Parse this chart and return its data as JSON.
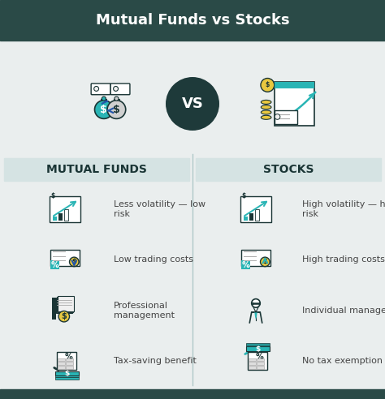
{
  "title": "Mutual Funds vs Stocks",
  "title_bg": "#2a4a47",
  "title_color": "#ffffff",
  "bg_color": "#eaeeee",
  "left_header": "MUTUAL FUNDS",
  "right_header": "STOCKS",
  "header_bg": "#d5e3e3",
  "header_text_color": "#1a3535",
  "accent_color": "#2ab5b5",
  "dark_color": "#1a3535",
  "vs_circle_color": "#1e3a3a",
  "vs_text_color": "#ffffff",
  "divider_color": "#b0c8c8",
  "left_items": [
    {
      "label": "Less volatility — low\nrisk"
    },
    {
      "label": "Low trading costs"
    },
    {
      "label": "Professional\nmanagement"
    },
    {
      "label": "Tax-saving benefit"
    }
  ],
  "right_items": [
    {
      "label": "High volatility — high\nrisk"
    },
    {
      "label": "High trading costs"
    },
    {
      "label": "Individual management"
    },
    {
      "label": "No tax exemption"
    }
  ],
  "body_text_color": "#444444",
  "bottom_bar_color": "#2a4a47"
}
